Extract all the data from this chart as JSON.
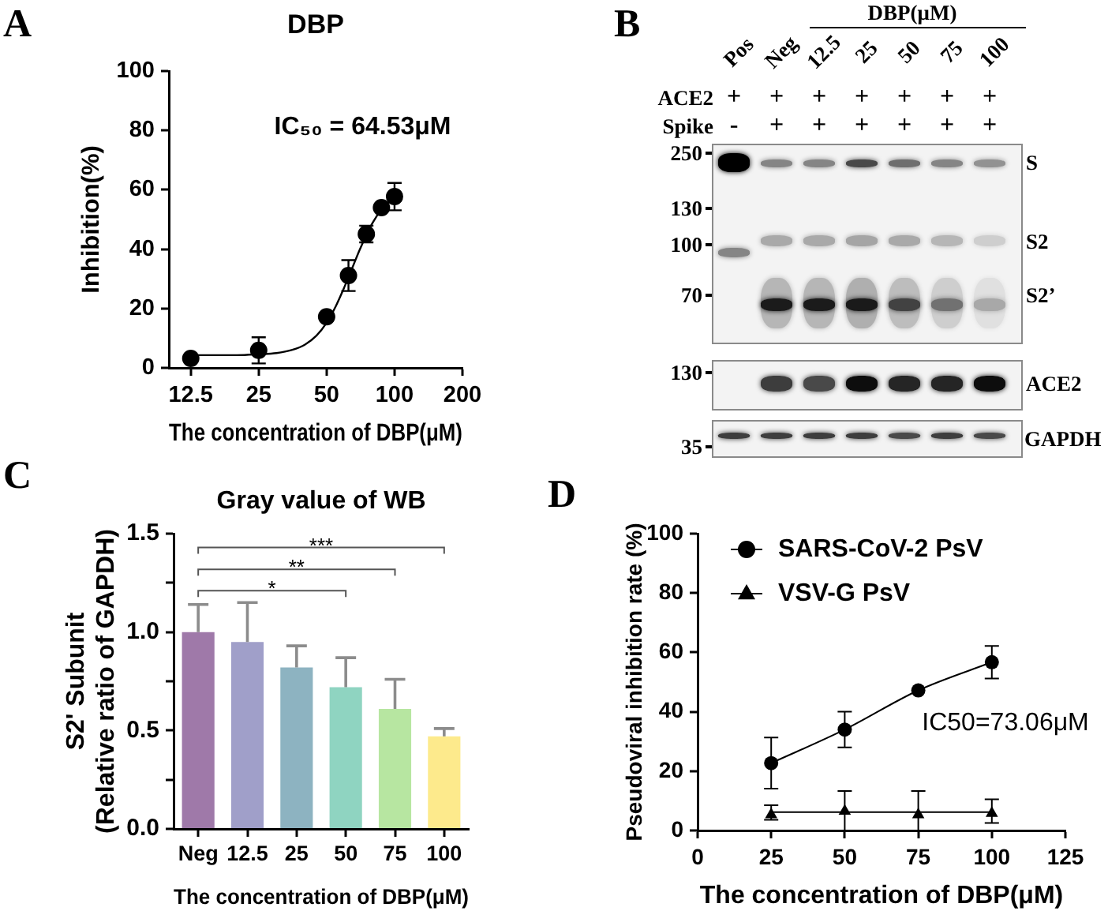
{
  "chart_data": [
    {
      "type": "scatter",
      "title": "DBP",
      "xlabel": "The concentration of DBP(μM)",
      "ylabel": "Inhibition(%)",
      "annotations": [
        "A",
        "IC₅₀ = 64.53μM"
      ],
      "log": "x",
      "xlim": [
        10,
        200
      ],
      "xticks": [
        12.5,
        25,
        50,
        100,
        200
      ],
      "ylim": [
        0,
        100
      ],
      "yticks": [
        0,
        20,
        40,
        60,
        80,
        100
      ],
      "series": [
        {
          "type": "scatter",
          "marker": "circle",
          "color": "#000000",
          "x": [
            12.5,
            25,
            50,
            62.5,
            75,
            87.5,
            100
          ],
          "values": [
            3.2,
            5.9,
            17.2,
            31.1,
            45.1,
            54,
            57.7
          ],
          "errors": [
            null,
            4.4,
            null,
            5.2,
            2.8,
            null,
            4.6
          ]
        },
        {
          "type": "line",
          "color": "#000000",
          "x": [
            12.5,
            20,
            25,
            30,
            35,
            40,
            45,
            50,
            55,
            60,
            65,
            70,
            75,
            80,
            87.5,
            100
          ],
          "values": [
            4.3,
            4.3,
            4.6,
            5,
            6,
            7.8,
            10.8,
            15.2,
            20.9,
            27.3,
            33.7,
            39.7,
            44.7,
            48.9,
            53.3,
            57.7
          ]
        }
      ]
    },
    {
      "type": "other",
      "annotations": [
        "B",
        "DBP(μM)",
        "250",
        "130",
        "100",
        "70",
        "S",
        "S2",
        "S2’",
        "130",
        "ACE2",
        "35",
        "GAPDH"
      ],
      "categories": [
        "Pos",
        "Neg",
        "12.5",
        "25",
        "50",
        "75",
        "100"
      ],
      "y_categories": [
        "ACE2",
        "Spike"
      ],
      "cell_labels": [
        [
          "+",
          "+",
          "+",
          "+",
          "+",
          "+",
          "+"
        ],
        [
          "-",
          "+",
          "+",
          "+",
          "+",
          "+",
          "+"
        ]
      ]
    },
    {
      "type": "bar",
      "title": "Gray value of WB",
      "xlabel": "The concentration of DBP(μM)",
      "ylabel": "S2' Subunit\n(Relative ratio of GAPDH)",
      "annotations": [
        "C",
        "*",
        "**",
        "***"
      ],
      "categories": [
        "Neg",
        "12.5",
        "25",
        "50",
        "75",
        "100"
      ],
      "values": [
        1,
        0.95,
        0.82,
        0.72,
        0.61,
        0.47
      ],
      "colors": [
        "#9f79a9",
        "#a09fc9",
        "#8db3c1",
        "#8fd4c1",
        "#b7e6a1",
        "#fdea8c"
      ],
      "errors": [
        [
          1,
          1.14
        ],
        [
          0.95,
          1.15
        ],
        [
          0.82,
          0.93
        ],
        [
          0.72,
          0.87
        ],
        [
          0.61,
          0.76
        ],
        [
          0.47,
          0.51
        ]
      ],
      "ylim": [
        0,
        1.5
      ],
      "yticks": [
        {
          "value": 0,
          "label": "0.0"
        },
        {
          "value": 0.25,
          "label": null
        },
        {
          "value": 0.5,
          "label": "0.5"
        },
        {
          "value": 0.75,
          "label": null
        },
        {
          "value": 1,
          "label": "1.0"
        },
        {
          "value": 1.25,
          "label": null
        },
        {
          "value": 1.5,
          "label": "1.5"
        }
      ]
    },
    {
      "type": "line",
      "xlabel": "The concentration of DBP(μM)",
      "ylabel": "Pseudoviral inhibition rate (%)",
      "annotations": [
        "D",
        "IC50=73.06μM"
      ],
      "xlim": [
        0,
        125
      ],
      "xticks": [
        0,
        25,
        50,
        75,
        100,
        125
      ],
      "ylim": [
        0,
        100
      ],
      "yticks": [
        0,
        20,
        40,
        60,
        80,
        100
      ],
      "legend": "top left",
      "series": [
        {
          "name": "SARS-CoV-2 PsV",
          "type": "line",
          "marker": "circle",
          "color": "#000000",
          "x": [
            25,
            50,
            75,
            100
          ],
          "values": [
            22.7,
            34,
            47.2,
            56.7
          ],
          "errors": [
            8.6,
            6,
            null,
            5.5
          ]
        },
        {
          "name": "VSV-G PsV",
          "type": "scatter",
          "marker": "triangle",
          "color": "#000000",
          "x": [
            25,
            50,
            75,
            100
          ],
          "values": [
            5.3,
            6.5,
            5.3,
            5.8
          ],
          "errors": [
            [
              3.6,
              8.5
            ],
            [
              0,
              13.3
            ],
            [
              0,
              13.3
            ],
            [
              2.5,
              10.5
            ]
          ]
        },
        {
          "type": "line",
          "color": "#000000",
          "x": [
            25,
            100
          ],
          "values": [
            6.2,
            6.2
          ]
        }
      ]
    }
  ]
}
